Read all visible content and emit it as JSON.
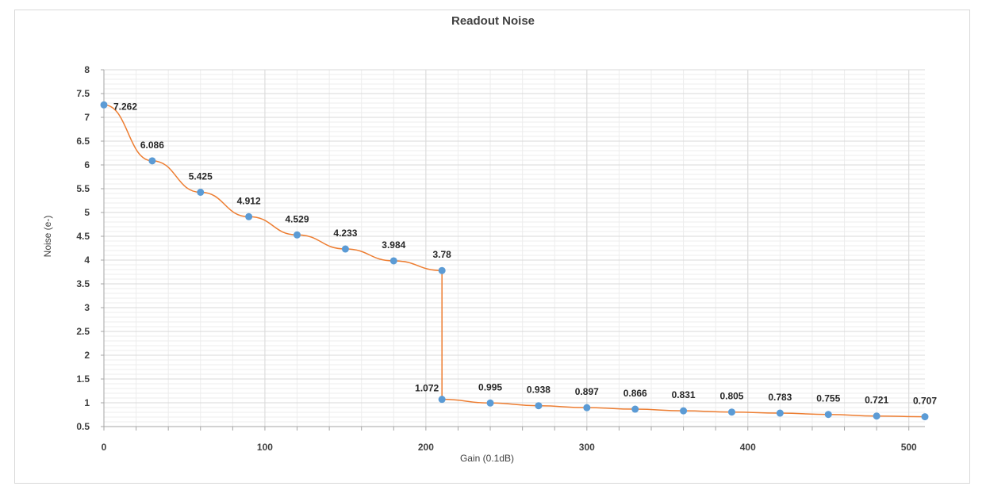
{
  "chart_data": {
    "type": "line",
    "title": "Readout Noise",
    "xlabel": "Gain (0.1dB)",
    "ylabel": "Noise (e-)",
    "xlim": [
      0,
      510
    ],
    "ylim": [
      0.5,
      8
    ],
    "x_ticks": [
      "0",
      "100",
      "200",
      "300",
      "400",
      "500"
    ],
    "y_ticks": [
      "0.5",
      "1",
      "1.5",
      "2",
      "2.5",
      "3",
      "3.5",
      "4",
      "4.5",
      "5",
      "5.5",
      "6",
      "6.5",
      "7",
      "7.5",
      "8"
    ],
    "grid": true,
    "legend": "none",
    "colors": {
      "line": "#ed7d31",
      "marker": "#5b9bd5",
      "grid_major": "#d9d9d9",
      "grid_minor": "#ededed"
    },
    "series": [
      {
        "x": [
          0,
          30,
          60,
          90,
          120,
          150,
          180,
          210,
          210,
          240,
          270,
          300,
          330,
          360,
          390,
          420,
          450,
          480,
          510
        ],
        "y": [
          7.262,
          6.086,
          5.425,
          4.912,
          4.529,
          4.233,
          3.984,
          3.78,
          1.072,
          0.995,
          0.938,
          0.897,
          0.866,
          0.831,
          0.805,
          0.783,
          0.755,
          0.721,
          0.707
        ],
        "labels": [
          "7.262",
          "6.086",
          "5.425",
          "4.912",
          "4.529",
          "4.233",
          "3.984",
          "3.78",
          "1.072",
          "0.995",
          "0.938",
          "0.897",
          "0.866",
          "0.831",
          "0.805",
          "0.783",
          "0.755",
          "0.721",
          "0.707"
        ]
      }
    ]
  }
}
